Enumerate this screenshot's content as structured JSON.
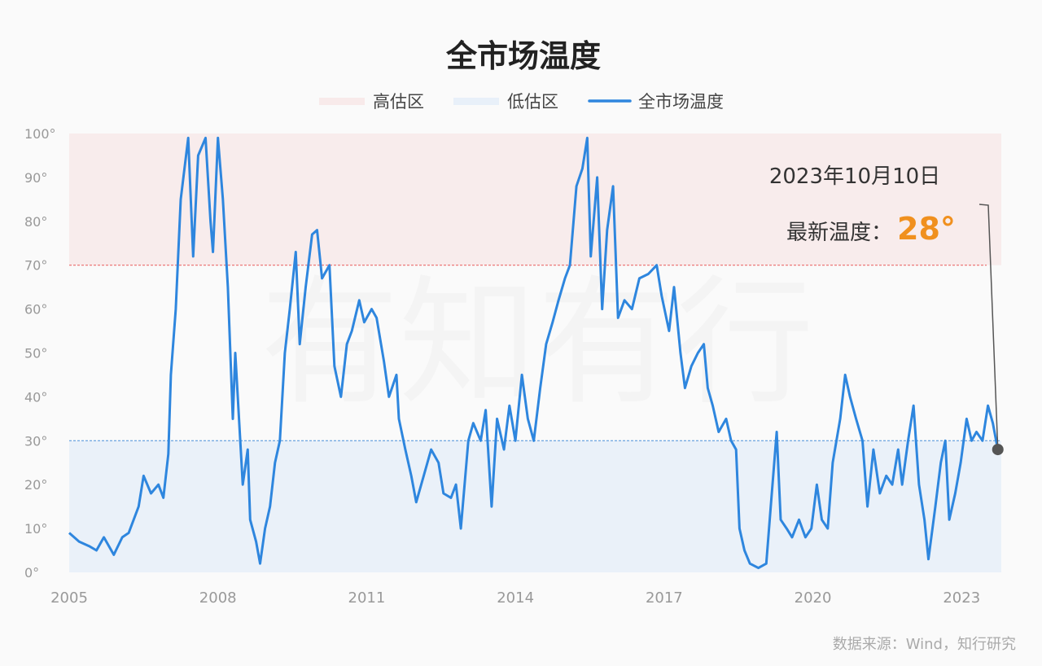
{
  "chart_data": {
    "type": "line",
    "title": "全市场温度",
    "legend": {
      "placement": "top-center",
      "entries": [
        {
          "label": "高估区",
          "kind": "band",
          "color": "#f8eaea"
        },
        {
          "label": "低估区",
          "kind": "band",
          "color": "#e8f0f9"
        },
        {
          "label": "全市场温度",
          "kind": "line",
          "color": "#2e86de"
        }
      ]
    },
    "zones": {
      "high": [
        70,
        100
      ],
      "low": [
        0,
        30
      ],
      "high_color": "#f8ecec",
      "low_color": "#eaf1f9",
      "high_line_color": "#e85a5a",
      "low_line_color": "#4a90d9"
    },
    "xlim": [
      2005.0,
      2023.8
    ],
    "ylim": [
      0,
      100
    ],
    "x_ticks": [
      "2005",
      "2008",
      "2011",
      "2014",
      "2017",
      "2020",
      "2023"
    ],
    "x_tick_values": [
      2005,
      2008,
      2011,
      2014,
      2017,
      2020,
      2023
    ],
    "y_ticks": [
      "0°",
      "10°",
      "20°",
      "30°",
      "40°",
      "50°",
      "60°",
      "70°",
      "80°",
      "90°",
      "100°"
    ],
    "y_tick_values": [
      0,
      10,
      20,
      30,
      40,
      50,
      60,
      70,
      80,
      90,
      100
    ],
    "grid": false,
    "series": [
      {
        "color": "#2e86de",
        "x": [
          2005.0,
          2005.2,
          2005.4,
          2005.55,
          2005.7,
          2005.9,
          2006.07,
          2006.2,
          2006.4,
          2006.5,
          2006.65,
          2006.8,
          2006.9,
          2007.0,
          2007.05,
          2007.15,
          2007.25,
          2007.4,
          2007.5,
          2007.6,
          2007.75,
          2007.85,
          2007.9,
          2008.0,
          2008.1,
          2008.2,
          2008.3,
          2008.35,
          2008.5,
          2008.6,
          2008.65,
          2008.77,
          2008.85,
          2008.95,
          2009.05,
          2009.15,
          2009.25,
          2009.35,
          2009.45,
          2009.57,
          2009.65,
          2009.77,
          2009.9,
          2010.0,
          2010.1,
          2010.25,
          2010.35,
          2010.48,
          2010.6,
          2010.7,
          2010.85,
          2010.95,
          2011.1,
          2011.2,
          2011.35,
          2011.45,
          2011.6,
          2011.65,
          2011.78,
          2011.9,
          2012.0,
          2012.15,
          2012.3,
          2012.45,
          2012.55,
          2012.7,
          2012.8,
          2012.9,
          2013.05,
          2013.15,
          2013.3,
          2013.4,
          2013.52,
          2013.63,
          2013.77,
          2013.88,
          2014.0,
          2014.13,
          2014.25,
          2014.37,
          2014.5,
          2014.62,
          2014.75,
          2014.87,
          2015.0,
          2015.1,
          2015.23,
          2015.35,
          2015.45,
          2015.52,
          2015.65,
          2015.75,
          2015.85,
          2015.97,
          2016.07,
          2016.2,
          2016.35,
          2016.5,
          2016.68,
          2016.85,
          2016.95,
          2017.1,
          2017.2,
          2017.33,
          2017.42,
          2017.55,
          2017.68,
          2017.8,
          2017.88,
          2017.98,
          2018.1,
          2018.25,
          2018.35,
          2018.45,
          2018.52,
          2018.62,
          2018.73,
          2018.9,
          2019.06,
          2019.15,
          2019.27,
          2019.35,
          2019.47,
          2019.58,
          2019.72,
          2019.85,
          2019.97,
          2020.08,
          2020.18,
          2020.3,
          2020.4,
          2020.55,
          2020.65,
          2020.75,
          2020.87,
          2021.0,
          2021.1,
          2021.22,
          2021.35,
          2021.48,
          2021.6,
          2021.72,
          2021.8,
          2021.92,
          2022.03,
          2022.14,
          2022.25,
          2022.33,
          2022.47,
          2022.58,
          2022.67,
          2022.75,
          2022.87,
          2022.98,
          2023.1,
          2023.2,
          2023.3,
          2023.42,
          2023.53,
          2023.63,
          2023.73
        ],
        "y": [
          9,
          7,
          6,
          5,
          8,
          4,
          8,
          9,
          15,
          22,
          18,
          20,
          17,
          27,
          45,
          60,
          85,
          99,
          72,
          95,
          99,
          80,
          73,
          99,
          85,
          65,
          35,
          50,
          20,
          28,
          12,
          7,
          2,
          10,
          15,
          25,
          30,
          50,
          60,
          73,
          52,
          65,
          77,
          78,
          67,
          70,
          47,
          40,
          52,
          55,
          62,
          57,
          60,
          58,
          48,
          40,
          45,
          35,
          28,
          22,
          16,
          22,
          28,
          25,
          18,
          17,
          20,
          10,
          30,
          34,
          30,
          37,
          15,
          35,
          28,
          38,
          30,
          45,
          35,
          30,
          42,
          52,
          57,
          62,
          67,
          70,
          88,
          92,
          99,
          72,
          90,
          60,
          78,
          88,
          58,
          62,
          60,
          67,
          68,
          70,
          63,
          55,
          65,
          50,
          42,
          47,
          50,
          52,
          42,
          38,
          32,
          35,
          30,
          28,
          10,
          5,
          2,
          1,
          2,
          15,
          32,
          12,
          10,
          8,
          12,
          8,
          10,
          20,
          12,
          10,
          25,
          35,
          45,
          40,
          35,
          30,
          15,
          28,
          18,
          22,
          20,
          28,
          20,
          30,
          38,
          20,
          12,
          3,
          15,
          25,
          30,
          12,
          18,
          25,
          35,
          30,
          32,
          30,
          38,
          34,
          28
        ]
      }
    ],
    "annotation": {
      "date": "2023年10月10日",
      "label": "最新温度：",
      "value": "28°",
      "value_color": "#f0901e"
    },
    "source": "数据来源：Wind，知行研究",
    "watermark": "有知有行"
  }
}
